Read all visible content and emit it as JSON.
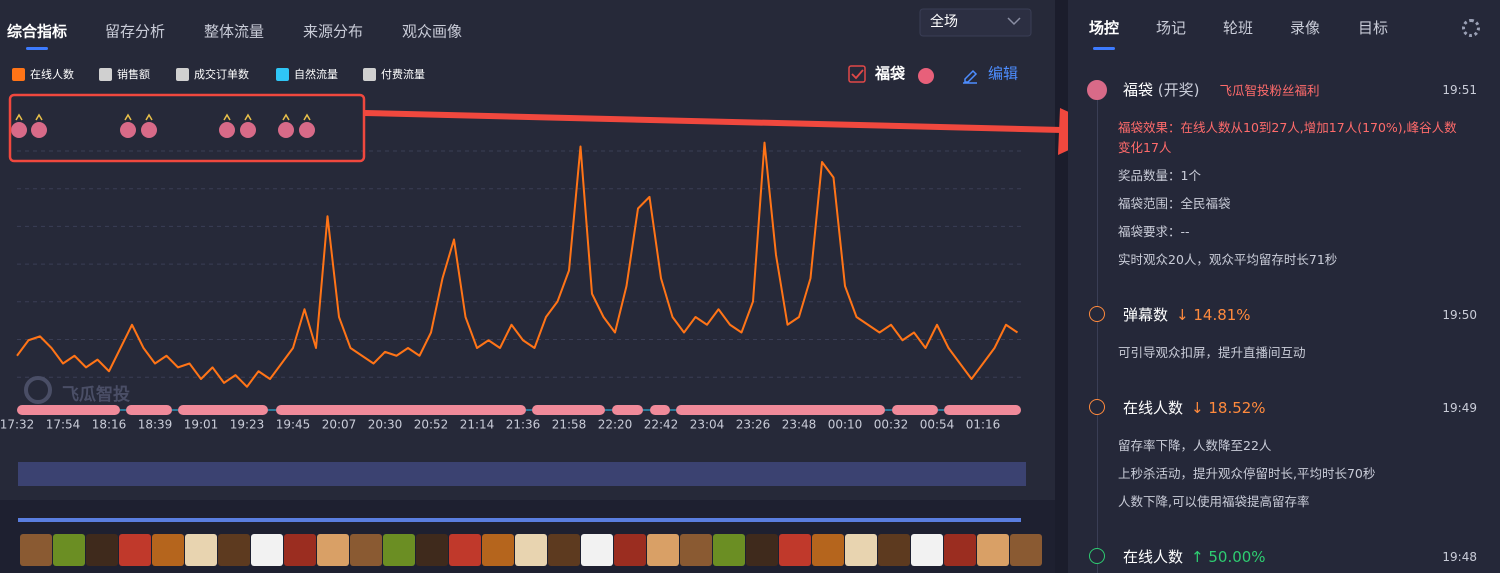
{
  "tabs": [
    "综合指标",
    "留存分析",
    "整体流量",
    "来源分布",
    "观众画像"
  ],
  "scope": "全场",
  "chart_data": {
    "type": "line",
    "categories": [
      "17:32",
      null,
      null,
      null,
      "17:54",
      null,
      null,
      null,
      "18:16",
      null,
      null,
      null,
      "18:39",
      null,
      null,
      null,
      "19:01",
      null,
      null,
      null,
      "19:23",
      null,
      null,
      null,
      "19:45",
      null,
      null,
      null,
      "20:07",
      null,
      null,
      null,
      "20:30",
      null,
      null,
      null,
      "20:52",
      null,
      null,
      null,
      "21:14",
      null,
      null,
      null,
      "21:36",
      null,
      null,
      null,
      "21:58",
      null,
      null,
      null,
      "22:20",
      null,
      null,
      null,
      "22:42",
      null,
      null,
      null,
      "23:04",
      null,
      null,
      null,
      "23:26",
      null,
      null,
      null,
      "23:48",
      null,
      null,
      null,
      "00:10",
      null,
      null,
      null,
      "00:32",
      null,
      null,
      null,
      "00:54",
      null,
      null,
      null,
      "01:16",
      null,
      null,
      null
    ],
    "series": [
      {
        "name": "在线人数",
        "color": "#ff7417",
        "values": [
          7,
          9,
          9.5,
          8,
          6,
          7,
          5.5,
          6.5,
          5,
          8,
          11,
          8,
          6,
          7,
          5.5,
          6,
          4,
          5.5,
          3.5,
          4.5,
          3,
          5,
          4,
          6,
          8,
          13,
          8,
          25,
          12,
          8,
          7,
          6,
          7.5,
          7,
          8,
          7,
          10,
          17,
          22,
          12,
          8,
          9,
          8,
          11,
          9,
          8,
          12,
          14,
          18,
          34,
          15,
          12,
          10,
          16,
          26,
          27.5,
          17,
          12,
          10,
          12,
          11,
          13,
          11,
          10,
          14,
          34.5,
          20,
          11,
          12,
          17,
          32,
          30,
          16,
          12,
          11,
          10,
          11,
          9,
          10,
          8,
          11,
          8,
          6,
          4,
          6,
          8,
          11,
          10
        ]
      }
    ],
    "ylim": [
      0,
      40
    ],
    "grid": true
  },
  "other_metrics": [
    {
      "name": "销售额",
      "color": "#d0d0d0"
    },
    {
      "name": "成交订单数",
      "color": "#d0d0d0"
    },
    {
      "name": "自然流量",
      "color": "#2fc6f6"
    },
    {
      "name": "付费流量",
      "color": "#d0d0d0"
    }
  ],
  "lucky_bag_toggle": "福袋",
  "edit": "编辑",
  "watermark": "飞瓜智投",
  "panel": {
    "tabs": [
      "场控",
      "场记",
      "轮班",
      "录像",
      "目标"
    ],
    "events": [
      {
        "title": "福袋",
        "tag": "(开奖)",
        "note": "飞瓜智投粉丝福利",
        "time": "19:51",
        "icon": "bag",
        "highlight": "福袋效果：在线人数从10到27人,增加17人(170%),峰谷人数变化17人",
        "details": [
          "奖品数量：1个",
          "福袋范围：全民福袋",
          "福袋要求：--",
          "实时观众20人，观众平均留存时长71秒"
        ]
      },
      {
        "title": "弹幕数",
        "change": "↓ 14.81%",
        "color": "#ff8a3d",
        "time": "19:50",
        "icon": "chevron",
        "details": [
          "可引导观众扣屏，提升直播间互动"
        ]
      },
      {
        "title": "在线人数",
        "change": "↓ 18.52%",
        "color": "#ff8a3d",
        "time": "19:49",
        "icon": "chevron",
        "details": [
          "留存率下降，人数降至22人",
          "上秒杀活动，提升观众停留时长,平均时长70秒",
          "人数下降,可以使用福袋提高留存率"
        ]
      },
      {
        "title": "在线人数",
        "change": "↑ 50.00%",
        "color": "#2ecc71",
        "time": "19:48",
        "icon": "chevron",
        "details": []
      }
    ]
  }
}
